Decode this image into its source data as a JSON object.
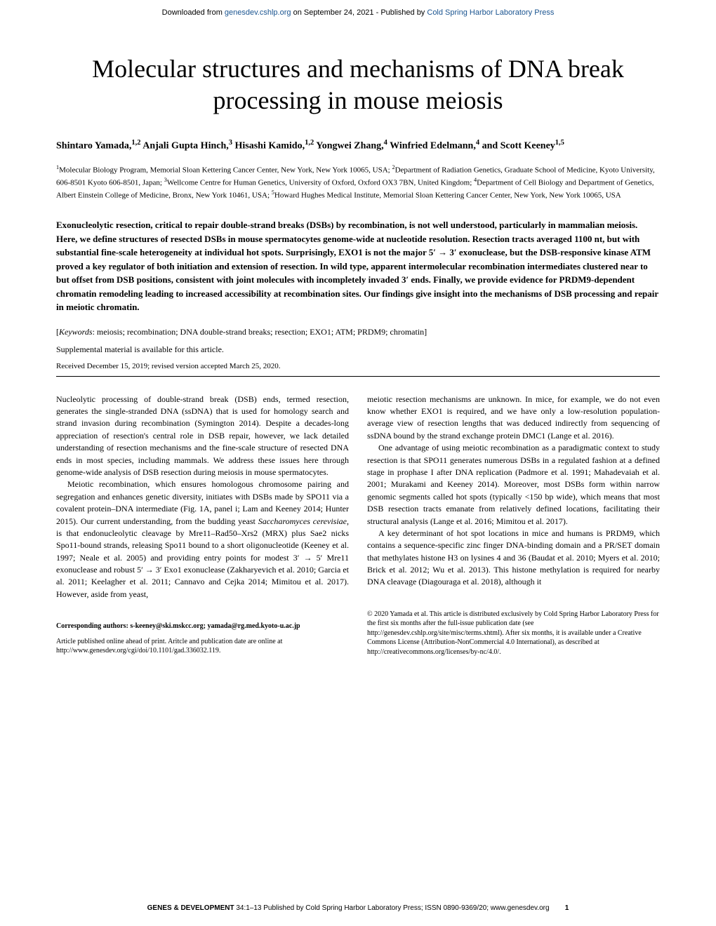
{
  "banner": {
    "prefix": "Downloaded from ",
    "link1": "genesdev.cshlp.org",
    "middle": " on September 24, 2021 - Published by ",
    "link2": "Cold Spring Harbor Laboratory Press"
  },
  "title": "Molecular structures and mechanisms of DNA break processing in mouse meiosis",
  "authors_html": "Shintaro Yamada,<sup>1,2</sup> Anjali Gupta Hinch,<sup>3</sup> Hisashi Kamido,<sup>1,2</sup> Yongwei Zhang,<sup>4</sup> Winfried Edelmann,<sup>4</sup> and Scott Keeney<sup>1,5</sup>",
  "affiliations_html": "<sup>1</sup>Molecular Biology Program, Memorial Sloan Kettering Cancer Center, New York, New York 10065, USA; <sup>2</sup>Department of Radiation Genetics, Graduate School of Medicine, Kyoto University, 606-8501 Kyoto 606-8501, Japan; <sup>3</sup>Wellcome Centre for Human Genetics, University of Oxford, Oxford OX3 7BN, United Kingdom; <sup>4</sup>Department of Cell Biology and Department of Genetics, Albert Einstein College of Medicine, Bronx, New York 10461, USA; <sup>5</sup>Howard Hughes Medical Institute, Memorial Sloan Kettering Cancer Center, New York, New York 10065, USA",
  "abstract": "Exonucleolytic resection, critical to repair double-strand breaks (DSBs) by recombination, is not well understood, particularly in mammalian meiosis. Here, we define structures of resected DSBs in mouse spermatocytes genome-wide at nucleotide resolution. Resection tracts averaged 1100 nt, but with substantial fine-scale heterogeneity at individual hot spots. Surprisingly, EXO1 is not the major 5′ → 3′ exonuclease, but the DSB-responsive kinase ATM proved a key regulator of both initiation and extension of resection. In wild type, apparent intermolecular recombination intermediates clustered near to but offset from DSB positions, consistent with joint molecules with incompletely invaded 3′ ends. Finally, we provide evidence for PRDM9-dependent chromatin remodeling leading to increased accessibility at recombination sites. Our findings give insight into the mechanisms of DSB processing and repair in meiotic chromatin.",
  "keywords": {
    "label": "Keywords",
    "text": ":  meiosis; recombination; DNA double-strand breaks; resection; EXO1; ATM; PRDM9; chromatin]"
  },
  "supplemental": "Supplemental material is available for this article.",
  "received": "Received December 15, 2019; revised version accepted March 25, 2020.",
  "body": {
    "left": {
      "p1": "Nucleolytic processing of double-strand break (DSB) ends, termed resection, generates the single-stranded DNA (ssDNA) that is used for homology search and strand invasion during recombination (Symington 2014). Despite a decades-long appreciation of resection's central role in DSB repair, however, we lack detailed understanding of resection mechanisms and the fine-scale structure of resected DNA ends in most species, including mammals. We address these issues here through genome-wide analysis of DSB resection during meiosis in mouse spermatocytes.",
      "p2_html": "Meiotic recombination, which ensures homologous chromosome pairing and segregation and enhances genetic diversity, initiates with DSBs made by SPO11 via a covalent protein–DNA intermediate (Fig. 1A, panel i; Lam and Keeney 2014; Hunter 2015). Our current understanding, from the budding yeast <i>Saccharomyces cerevisiae</i>, is that endonucleolytic cleavage by Mre11–Rad50–Xrs2 (MRX) plus Sae2 nicks Spo11-bound strands, releasing Spo11 bound to a short oligonucleotide (Keeney et al. 1997; Neale et al. 2005) and providing entry points for modest 3′ → 5′ Mre11 exonuclease and robust 5′ → 3′ Exo1 exonuclease (Zakharyevich et al. 2010; Garcia et al. 2011; Keelagher et al. 2011; Cannavo and Cejka 2014; Mimitou et al. 2017). However, aside from yeast,"
    },
    "right": {
      "p1": "meiotic resection mechanisms are unknown. In mice, for example, we do not even know whether EXO1 is required, and we have only a low-resolution population-average view of resection lengths that was deduced indirectly from sequencing of ssDNA bound by the strand exchange protein DMC1 (Lange et al. 2016).",
      "p2": "One advantage of using meiotic recombination as a paradigmatic context to study resection is that SPO11 generates numerous DSBs in a regulated fashion at a defined stage in prophase I after DNA replication (Padmore et al. 1991; Mahadevaiah et al. 2001; Murakami and Keeney 2014). Moreover, most DSBs form within narrow genomic segments called hot spots (typically <150 bp wide), which means that most DSB resection tracts emanate from relatively defined locations, facilitating their structural analysis (Lange et al. 2016; Mimitou et al. 2017).",
      "p3": "A key determinant of hot spot locations in mice and humans is PRDM9, which contains a sequence-specific zinc finger DNA-binding domain and a PR/SET domain that methylates histone H3 on lysines 4 and 36 (Baudat et al. 2010; Myers et al. 2010; Brick et al. 2012; Wu et al. 2013). This histone methylation is required for nearby DNA cleavage (Diagouraga et al. 2018), although it"
    }
  },
  "footer": {
    "corresponding_label": "Corresponding authors: ",
    "corresponding_emails": "s-keeney@ski.mskcc.org; yamada@rg.med.kyoto-u.ac.jp",
    "article_info": "Article published online ahead of print. Aritcle and publication date are online at http://www.genesdev.org/cgi/doi/10.1101/gad.336032.119.",
    "copyright": "© 2020 Yamada et al.  This article is distributed exclusively by Cold Spring Harbor Laboratory Press for the first six months after the full-issue publication date (see http://genesdev.cshlp.org/site/misc/terms.xhtml). After six months, it is available under a Creative Commons License (Attribution-NonCommercial 4.0 International), as described at http://creativecommons.org/licenses/by-nc/4.0/."
  },
  "page_footer": {
    "journal": "GENES & DEVELOPMENT",
    "details": " 34:1–13 Published by Cold Spring Harbor Laboratory Press; ISSN 0890-9369/20; www.genesdev.org",
    "page_number": "1"
  },
  "colors": {
    "link": "#1a5490",
    "text": "#000000",
    "background": "#ffffff"
  },
  "typography": {
    "title_size": 36,
    "body_size": 12,
    "abstract_size": 13,
    "footer_size": 10
  }
}
